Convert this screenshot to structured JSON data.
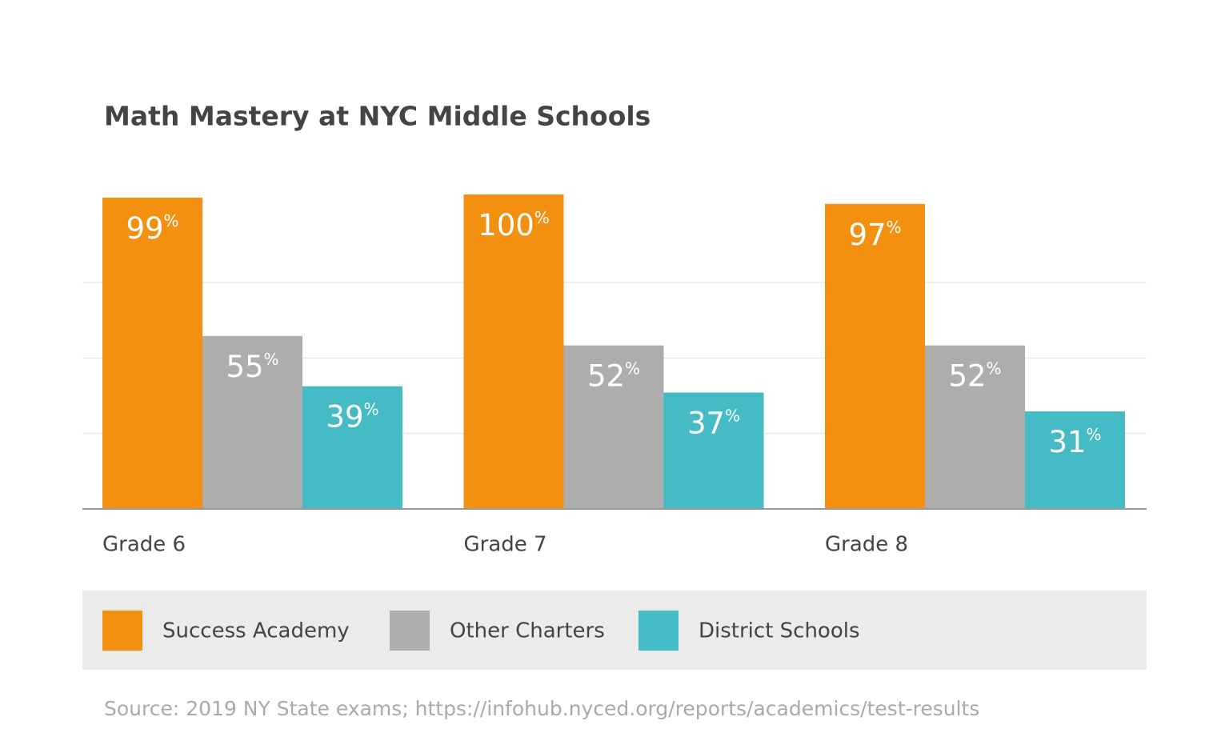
{
  "chart_data": {
    "type": "bar",
    "title": "Math Mastery at NYC Middle Schools",
    "categories": [
      "Grade 6",
      "Grade 7",
      "Grade 8"
    ],
    "series": [
      {
        "name": "Success Academy",
        "color": "#f39010",
        "values": [
          99,
          100,
          97
        ],
        "value_labels": [
          "99%",
          "100%",
          "97%"
        ]
      },
      {
        "name": "Other Charters",
        "color": "#adadad",
        "values": [
          55,
          52,
          52
        ],
        "value_labels": [
          "55%",
          "52%",
          "52%"
        ]
      },
      {
        "name": "District Schools",
        "color": "#45bcc5",
        "values": [
          39,
          37,
          31
        ],
        "value_labels": [
          "39%",
          "37%",
          "31%"
        ]
      }
    ],
    "ylim": [
      0,
      100
    ],
    "yticks": [
      0,
      24,
      48,
      72
    ],
    "grid": true,
    "source": "Source: 2019 NY State exams; https://infohub.nyced.org/reports/academics/test-results"
  }
}
